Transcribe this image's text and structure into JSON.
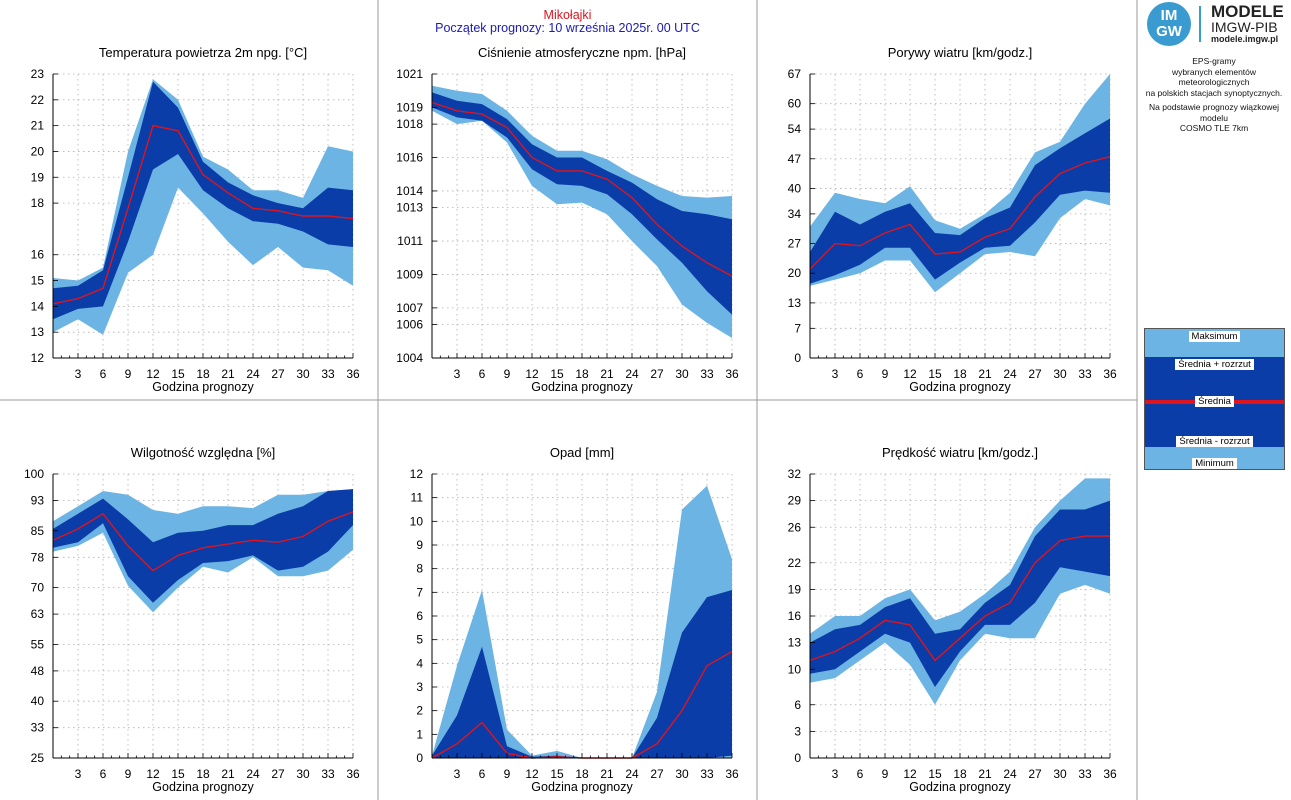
{
  "header": {
    "station": "Mikołajki",
    "forecast_start": "Początek prognozy: 10 września 2025r. 00 UTC"
  },
  "logo": {
    "badge_top": "IM",
    "badge_bottom": "GW",
    "title": "MODELE",
    "subtitle": "IMGW-PIB",
    "url": "modele.imgw.pl"
  },
  "side_info": {
    "lines1": [
      "EPS-gramy",
      "wybranych elementów meteorologicznych",
      "na polskich stacjach  synoptycznych."
    ],
    "lines2": [
      "Na podstawie prognozy wiązkowej modelu",
      "COSMO TLE 7km"
    ]
  },
  "legend": {
    "max": "Maksimum",
    "mean_plus": "Średnia + rozrzut",
    "mean": "Średnia",
    "mean_minus": "Średnia - rozrzut",
    "min": "Minimum"
  },
  "colors": {
    "light_band": "#6cb4e4",
    "dark_band": "#0a3da8",
    "mean_line": "#e0141e",
    "header_station": "#e0141e",
    "header_start": "#1a1ab8"
  },
  "chart_data": [
    {
      "type": "area",
      "title": "Temperatura powietrza 2m npg. [°C]",
      "xlabel": "Godzina prognozy",
      "x": [
        0,
        3,
        6,
        9,
        12,
        15,
        18,
        21,
        24,
        27,
        30,
        33,
        36
      ],
      "xticks": [
        3,
        6,
        9,
        12,
        15,
        18,
        21,
        24,
        27,
        30,
        33,
        36
      ],
      "yticks": [
        12,
        13,
        14,
        15,
        16,
        18,
        19,
        20,
        21,
        22,
        23
      ],
      "ylim": [
        12,
        23
      ],
      "max": [
        15.1,
        15.0,
        15.5,
        20.0,
        22.8,
        22.0,
        19.8,
        19.3,
        18.5,
        18.5,
        18.2,
        20.2,
        20.0
      ],
      "mean_plus": [
        14.7,
        14.8,
        15.4,
        19.0,
        22.7,
        21.7,
        19.6,
        18.8,
        18.3,
        18.0,
        17.8,
        18.6,
        18.5
      ],
      "mean": [
        14.1,
        14.3,
        14.7,
        17.8,
        21.0,
        20.8,
        19.1,
        18.4,
        17.8,
        17.7,
        17.5,
        17.5,
        17.4
      ],
      "mean_minus": [
        13.5,
        13.9,
        14.0,
        16.5,
        19.3,
        19.9,
        18.5,
        17.8,
        17.3,
        17.2,
        16.9,
        16.4,
        16.3
      ],
      "min": [
        13.0,
        13.5,
        12.9,
        15.3,
        16.0,
        18.6,
        17.6,
        16.5,
        15.6,
        16.3,
        15.5,
        15.4,
        14.8
      ]
    },
    {
      "type": "area",
      "title": "Ciśnienie atmosferyczne npm. [hPa]",
      "xlabel": "Godzina prognozy",
      "x": [
        0,
        3,
        6,
        9,
        12,
        15,
        18,
        21,
        24,
        27,
        30,
        33,
        36
      ],
      "xticks": [
        3,
        6,
        9,
        12,
        15,
        18,
        21,
        24,
        27,
        30,
        33,
        36
      ],
      "yticks": [
        1004,
        1006,
        1007,
        1009,
        1011,
        1013,
        1014,
        1016,
        1018,
        1019,
        1021
      ],
      "ylim": [
        1004,
        1021
      ],
      "max": [
        1020.3,
        1020.0,
        1019.8,
        1018.8,
        1017.3,
        1016.4,
        1016.4,
        1015.9,
        1015.0,
        1014.3,
        1013.7,
        1013.6,
        1013.7
      ],
      "mean_plus": [
        1019.9,
        1019.4,
        1019.2,
        1018.3,
        1016.8,
        1016.0,
        1016.0,
        1015.2,
        1014.5,
        1013.5,
        1012.8,
        1012.6,
        1012.3
      ],
      "mean": [
        1019.3,
        1018.8,
        1018.6,
        1017.8,
        1016.0,
        1015.2,
        1015.2,
        1014.7,
        1013.6,
        1012.0,
        1010.7,
        1009.7,
        1008.9
      ],
      "mean_minus": [
        1019.0,
        1018.4,
        1018.2,
        1017.2,
        1015.3,
        1014.4,
        1014.3,
        1013.8,
        1012.6,
        1011.1,
        1009.7,
        1008.0,
        1006.6
      ],
      "min": [
        1018.8,
        1018.0,
        1018.2,
        1016.9,
        1014.3,
        1013.2,
        1013.3,
        1012.6,
        1011.0,
        1009.5,
        1007.2,
        1006.1,
        1005.2
      ]
    },
    {
      "type": "area",
      "title": "Porywy wiatru [km/godz.]",
      "xlabel": "Godzina prognozy",
      "x": [
        0,
        3,
        6,
        9,
        12,
        15,
        18,
        21,
        24,
        27,
        30,
        33,
        36
      ],
      "xticks": [
        3,
        6,
        9,
        12,
        15,
        18,
        21,
        24,
        27,
        30,
        33,
        36
      ],
      "yticks": [
        0,
        7,
        13,
        20,
        27,
        34,
        40,
        47,
        54,
        60,
        67
      ],
      "ylim": [
        0,
        67
      ],
      "max": [
        31.0,
        39.0,
        37.5,
        36.5,
        40.5,
        32.5,
        30.5,
        34.0,
        39.0,
        48.5,
        51.0,
        60.0,
        67.0
      ],
      "mean_plus": [
        25.0,
        34.5,
        31.5,
        34.5,
        36.5,
        29.5,
        29.0,
        33.0,
        35.5,
        45.5,
        49.5,
        53.0,
        56.5
      ],
      "mean": [
        21.0,
        27.0,
        26.5,
        29.5,
        31.5,
        24.5,
        25.0,
        28.5,
        30.5,
        38.0,
        43.5,
        46.0,
        47.5
      ],
      "mean_minus": [
        17.5,
        19.5,
        22.0,
        26.0,
        26.0,
        18.5,
        22.5,
        26.0,
        26.5,
        32.0,
        38.5,
        39.5,
        39.0
      ],
      "min": [
        17.0,
        18.5,
        20.0,
        23.0,
        23.0,
        15.5,
        20.0,
        24.5,
        25.0,
        24.0,
        33.0,
        37.5,
        36.0
      ]
    },
    {
      "type": "area",
      "title": "Wilgotność względna [%]",
      "xlabel": "Godzina prognozy",
      "x": [
        0,
        3,
        6,
        9,
        12,
        15,
        18,
        21,
        24,
        27,
        30,
        33,
        36
      ],
      "xticks": [
        3,
        6,
        9,
        12,
        15,
        18,
        21,
        24,
        27,
        30,
        33,
        36
      ],
      "yticks": [
        25,
        33,
        40,
        48,
        55,
        63,
        70,
        78,
        85,
        93,
        100
      ],
      "ylim": [
        25,
        100
      ],
      "max": [
        87.5,
        91.5,
        95.5,
        94.5,
        90.5,
        89.5,
        91.5,
        91.5,
        91.0,
        94.5,
        94.5,
        95.5,
        96.0
      ],
      "mean_plus": [
        85.5,
        89.5,
        93.5,
        88.0,
        82.0,
        84.5,
        85.0,
        86.5,
        86.5,
        89.5,
        91.5,
        95.5,
        96.0
      ],
      "mean": [
        82.5,
        85.5,
        89.5,
        81.0,
        74.5,
        78.5,
        80.5,
        81.5,
        82.5,
        82.0,
        83.5,
        87.5,
        90.0
      ],
      "mean_minus": [
        80.5,
        82.0,
        87.0,
        73.0,
        66.0,
        72.0,
        76.5,
        77.0,
        78.5,
        74.5,
        75.5,
        79.5,
        86.5
      ],
      "min": [
        79.5,
        81.0,
        84.5,
        70.5,
        63.5,
        70.0,
        75.5,
        74.0,
        78.0,
        73.0,
        73.0,
        74.5,
        80.0
      ]
    },
    {
      "type": "area",
      "title": "Opad [mm]",
      "xlabel": "Godzina prognozy",
      "x": [
        0,
        3,
        6,
        9,
        12,
        15,
        18,
        21,
        24,
        27,
        30,
        33,
        36
      ],
      "xticks": [
        3,
        6,
        9,
        12,
        15,
        18,
        21,
        24,
        27,
        30,
        33,
        36
      ],
      "yticks": [
        0,
        1,
        2,
        3,
        4,
        5,
        6,
        7,
        8,
        9,
        10,
        11,
        12
      ],
      "ylim": [
        0,
        12
      ],
      "max": [
        0.1,
        3.9,
        7.1,
        1.2,
        0.1,
        0.3,
        0.0,
        0.0,
        0.0,
        2.8,
        10.5,
        11.5,
        8.4
      ],
      "mean_plus": [
        0.1,
        1.8,
        4.7,
        0.5,
        0.05,
        0.1,
        0.0,
        0.0,
        0.0,
        1.7,
        5.3,
        6.8,
        7.1
      ],
      "mean": [
        0.0,
        0.6,
        1.5,
        0.2,
        0.0,
        0.05,
        0.0,
        0.0,
        0.0,
        0.6,
        2.0,
        3.9,
        4.5
      ],
      "mean_minus": [
        0.0,
        0.0,
        0.0,
        0.0,
        0.0,
        0.0,
        0.0,
        0.0,
        0.0,
        0.0,
        0.0,
        0.0,
        0.1
      ],
      "min": [
        0.0,
        0.0,
        0.0,
        0.0,
        0.0,
        0.0,
        0.0,
        0.0,
        0.0,
        0.0,
        0.0,
        0.0,
        0.0
      ]
    },
    {
      "type": "area",
      "title": "Prędkość wiatru [km/godz.]",
      "xlabel": "Godzina prognozy",
      "x": [
        0,
        3,
        6,
        9,
        12,
        15,
        18,
        21,
        24,
        27,
        30,
        33,
        36
      ],
      "xticks": [
        3,
        6,
        9,
        12,
        15,
        18,
        21,
        24,
        27,
        30,
        33,
        36
      ],
      "yticks": [
        0,
        3,
        6,
        10,
        13,
        16,
        19,
        22,
        26,
        29,
        32
      ],
      "ylim": [
        0,
        32
      ],
      "max": [
        14.0,
        16.0,
        16.0,
        18.0,
        19.0,
        15.5,
        16.5,
        18.5,
        21.0,
        26.0,
        29.0,
        31.5,
        31.5
      ],
      "mean_plus": [
        13.0,
        14.5,
        15.0,
        17.0,
        18.0,
        14.0,
        14.5,
        17.5,
        19.5,
        25.0,
        28.0,
        28.0,
        29.0
      ],
      "mean": [
        11.0,
        12.0,
        13.5,
        15.5,
        15.0,
        11.0,
        13.5,
        16.0,
        17.5,
        22.0,
        24.5,
        25.0,
        25.0
      ],
      "mean_minus": [
        9.5,
        10.0,
        12.0,
        14.0,
        13.0,
        8.0,
        12.0,
        15.0,
        15.0,
        17.5,
        21.5,
        21.0,
        20.5
      ],
      "min": [
        8.5,
        9.0,
        11.0,
        13.0,
        10.5,
        6.0,
        11.0,
        14.0,
        13.5,
        13.5,
        18.5,
        19.5,
        18.5
      ]
    }
  ]
}
